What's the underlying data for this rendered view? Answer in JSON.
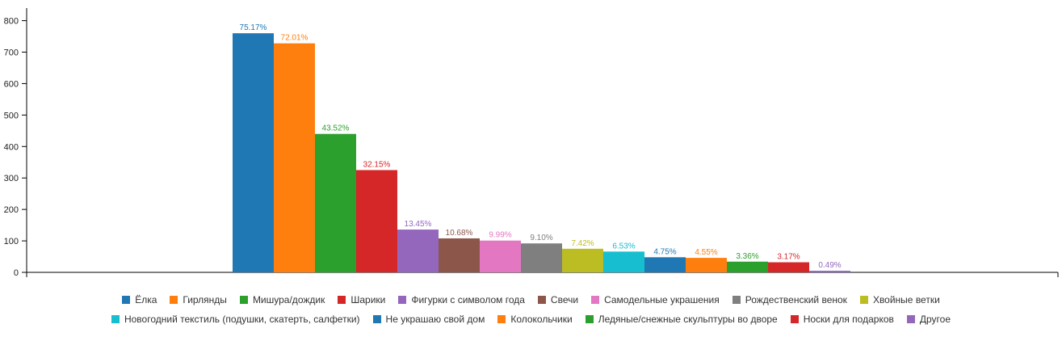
{
  "chart_data": {
    "type": "bar",
    "categories": [
      "Ёлка",
      "Гирлянды",
      "Мишура/дождик",
      "Шарики",
      "Фигурки с символом года",
      "Свечи",
      "Самодельные украшения",
      "Рождественский венок",
      "Хвойные ветки",
      "Новогодний текстиль (подушки, скатерть, салфетки)",
      "Не украшаю свой дом",
      "Колокольчики",
      "Ледяные/снежные скульптуры во дворе",
      "Носки для подарков",
      "Другое"
    ],
    "values": [
      760,
      728,
      440,
      325,
      136,
      108,
      101,
      92,
      75,
      66,
      48,
      46,
      34,
      32,
      5
    ],
    "labels": [
      "75.17%",
      "72.01%",
      "43.52%",
      "32.15%",
      "13.45%",
      "10.68%",
      "9.99%",
      "9.10%",
      "7.42%",
      "6.53%",
      "4.75%",
      "4.55%",
      "3.36%",
      "3.17%",
      "0.49%"
    ],
    "colors": [
      "#1f77b4",
      "#ff7f0e",
      "#2ca02c",
      "#d62728",
      "#9467bd",
      "#8c564b",
      "#e377c2",
      "#7f7f7f",
      "#bcbd22",
      "#17becf",
      "#1f77b4",
      "#ff7f0e",
      "#2ca02c",
      "#d62728",
      "#9467bd"
    ],
    "yticks": [
      "0",
      "100",
      "200",
      "300",
      "400",
      "500",
      "600",
      "700",
      "800"
    ],
    "ylim": [
      0,
      840
    ],
    "legend_position": "bottom",
    "grid": false,
    "xlabel": "",
    "ylabel": ""
  },
  "legend_rows": [
    [
      "Ёлка",
      "Гирлянды",
      "Мишура/дождик",
      "Шарики",
      "Фигурки с символом года",
      "Свечи",
      "Самодельные украшения",
      "Рождественский венок",
      "Хвойные ветки"
    ],
    [
      "Новогодний текстиль (подушки, скатерть, салфетки)",
      "Не украшаю свой дом",
      "Колокольчики",
      "Ледяные/снежные скульптуры во дворе",
      "Носки для подарков",
      "Другое"
    ]
  ]
}
